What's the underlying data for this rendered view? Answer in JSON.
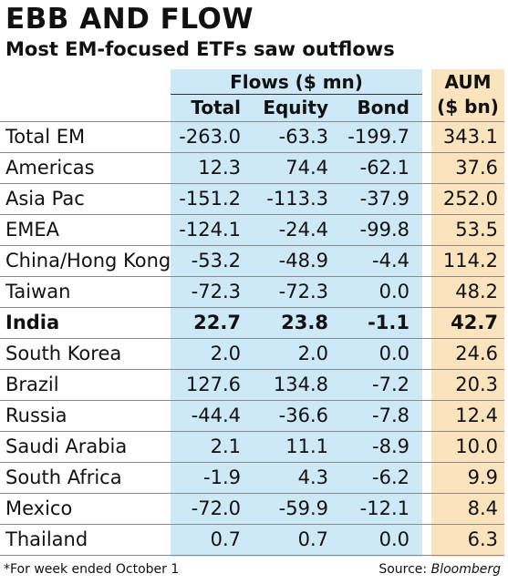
{
  "chart_data": {
    "type": "table",
    "title": "EBB AND FLOW",
    "subtitle": "Most EM-focused ETFs saw outflows",
    "group_headers": {
      "flows": "Flows ($ mn)",
      "aum_line1": "AUM",
      "aum_line2": "($ bn)"
    },
    "columns": [
      "Total",
      "Equity",
      "Bond"
    ],
    "rows": [
      {
        "label": "Total EM",
        "values": [
          "-263.0",
          "-63.3",
          "-199.7",
          "343.1"
        ],
        "bold": false
      },
      {
        "label": "Americas",
        "values": [
          "12.3",
          "74.4",
          "-62.1",
          "37.6"
        ],
        "bold": false
      },
      {
        "label": "Asia Pac",
        "values": [
          "-151.2",
          "-113.3",
          "-37.9",
          "252.0"
        ],
        "bold": false
      },
      {
        "label": "EMEA",
        "values": [
          "-124.1",
          "-24.4",
          "-99.8",
          "53.5"
        ],
        "bold": false
      },
      {
        "label": "China/Hong Kong",
        "values": [
          "-53.2",
          "-48.9",
          "-4.4",
          "114.2"
        ],
        "bold": false
      },
      {
        "label": "Taiwan",
        "values": [
          "-72.3",
          "-72.3",
          "0.0",
          "48.2"
        ],
        "bold": false
      },
      {
        "label": "India",
        "values": [
          "22.7",
          "23.8",
          "-1.1",
          "42.7"
        ],
        "bold": true
      },
      {
        "label": "South Korea",
        "values": [
          "2.0",
          "2.0",
          "0.0",
          "24.6"
        ],
        "bold": false
      },
      {
        "label": "Brazil",
        "values": [
          "127.6",
          "134.8",
          "-7.2",
          "20.3"
        ],
        "bold": false
      },
      {
        "label": "Russia",
        "values": [
          "-44.4",
          "-36.6",
          "-7.8",
          "12.4"
        ],
        "bold": false
      },
      {
        "label": "Saudi Arabia",
        "values": [
          "2.1",
          "11.1",
          "-8.9",
          "10.0"
        ],
        "bold": false
      },
      {
        "label": "South Africa",
        "values": [
          "-1.9",
          "4.3",
          "-6.2",
          "9.9"
        ],
        "bold": false
      },
      {
        "label": "Mexico",
        "values": [
          "-72.0",
          "-59.9",
          "-12.1",
          "8.4"
        ],
        "bold": false
      },
      {
        "label": "Thailand",
        "values": [
          "0.7",
          "0.7",
          "0.0",
          "6.3"
        ],
        "bold": false
      }
    ],
    "footnote": "*For week ended October 1",
    "source_prefix": "Source: ",
    "source_name": "Bloomberg",
    "colors": {
      "flows_band": "#cde8f7",
      "aum_band": "#fbe3bd",
      "text": "#111111"
    }
  }
}
